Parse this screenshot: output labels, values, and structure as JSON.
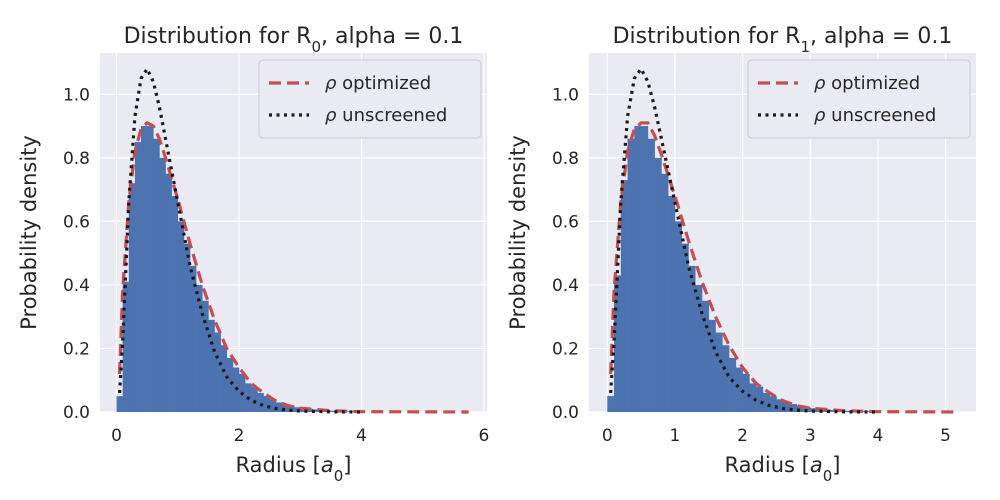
{
  "chart_data": [
    {
      "type": "histogram",
      "title_main": "Distribution for R",
      "title_sub": "0",
      "title_rest": ", alpha = 0.1",
      "xlabel_main": "Radius [",
      "xlabel_italic": "a",
      "xlabel_sub": "0",
      "xlabel_end": "]",
      "ylabel": "Probability density",
      "xlim": [
        -0.27,
        6.05
      ],
      "ylim": [
        0,
        1.13
      ],
      "xticks": [
        0,
        2,
        4,
        6
      ],
      "yticks": [
        0.0,
        0.2,
        0.4,
        0.6,
        0.8,
        1.0
      ],
      "grid": true,
      "legend_position": "top-right",
      "legend": [
        {
          "symbol": "ρ",
          "text": " optimized",
          "style": "dashed",
          "color": "#c44e52"
        },
        {
          "symbol": "ρ",
          "text": " unscreened",
          "style": "dotted",
          "color": "#1a1a1a"
        }
      ],
      "hist": {
        "color": "#4c72b0",
        "bin_start": 0.0,
        "bin_width": 0.1,
        "counts": [
          0.05,
          0.41,
          0.72,
          0.85,
          0.9,
          0.9,
          0.86,
          0.8,
          0.75,
          0.68,
          0.6,
          0.53,
          0.46,
          0.4,
          0.35,
          0.29,
          0.25,
          0.21,
          0.17,
          0.14,
          0.12,
          0.09,
          0.08,
          0.06,
          0.05,
          0.04,
          0.03,
          0.025,
          0.02,
          0.015,
          0.012,
          0.01,
          0.008,
          0.006,
          0.005,
          0.004,
          0.003,
          0.002,
          0.002,
          0.001
        ]
      },
      "curves": {
        "x_end": 5.75,
        "optimized": [
          [
            0.05,
            0.12
          ],
          [
            0.1,
            0.38
          ],
          [
            0.2,
            0.66
          ],
          [
            0.3,
            0.82
          ],
          [
            0.4,
            0.89
          ],
          [
            0.5,
            0.91
          ],
          [
            0.6,
            0.9
          ],
          [
            0.7,
            0.86
          ],
          [
            0.8,
            0.8
          ],
          [
            1.0,
            0.67
          ],
          [
            1.2,
            0.53
          ],
          [
            1.4,
            0.4
          ],
          [
            1.6,
            0.29
          ],
          [
            1.8,
            0.2
          ],
          [
            2.0,
            0.14
          ],
          [
            2.2,
            0.09
          ],
          [
            2.4,
            0.06
          ],
          [
            2.6,
            0.035
          ],
          [
            2.8,
            0.02
          ],
          [
            3.0,
            0.012
          ],
          [
            3.5,
            0.004
          ],
          [
            4.0,
            0.001
          ],
          [
            5.75,
            0.0
          ]
        ],
        "unscreened": [
          [
            0.05,
            0.06
          ],
          [
            0.1,
            0.22
          ],
          [
            0.2,
            0.66
          ],
          [
            0.3,
            0.93
          ],
          [
            0.4,
            1.05
          ],
          [
            0.5,
            1.08
          ],
          [
            0.6,
            1.04
          ],
          [
            0.7,
            0.96
          ],
          [
            0.8,
            0.86
          ],
          [
            1.0,
            0.66
          ],
          [
            1.2,
            0.46
          ],
          [
            1.4,
            0.31
          ],
          [
            1.6,
            0.19
          ],
          [
            1.8,
            0.11
          ],
          [
            2.0,
            0.065
          ],
          [
            2.2,
            0.037
          ],
          [
            2.4,
            0.02
          ],
          [
            2.6,
            0.011
          ],
          [
            2.8,
            0.006
          ],
          [
            3.0,
            0.003
          ],
          [
            3.5,
            0.0005
          ],
          [
            4.0,
            0.0
          ]
        ]
      }
    },
    {
      "type": "histogram",
      "title_main": "Distribution for R",
      "title_sub": "1",
      "title_rest": ", alpha = 0.1",
      "xlabel_main": "Radius [",
      "xlabel_italic": "a",
      "xlabel_sub": "0",
      "xlabel_end": "]",
      "ylabel": "Probability density",
      "xlim": [
        -0.27,
        5.45
      ],
      "ylim": [
        0,
        1.13
      ],
      "xticks": [
        0,
        1,
        2,
        3,
        4,
        5
      ],
      "yticks": [
        0.0,
        0.2,
        0.4,
        0.6,
        0.8,
        1.0
      ],
      "grid": true,
      "legend_position": "top-right",
      "legend": [
        {
          "symbol": "ρ",
          "text": " optimized",
          "style": "dashed",
          "color": "#c44e52"
        },
        {
          "symbol": "ρ",
          "text": " unscreened",
          "style": "dotted",
          "color": "#1a1a1a"
        }
      ],
      "hist": {
        "color": "#4c72b0",
        "bin_start": 0.0,
        "bin_width": 0.1,
        "counts": [
          0.05,
          0.43,
          0.73,
          0.86,
          0.9,
          0.9,
          0.86,
          0.8,
          0.75,
          0.68,
          0.6,
          0.53,
          0.46,
          0.4,
          0.35,
          0.29,
          0.25,
          0.21,
          0.17,
          0.14,
          0.12,
          0.09,
          0.08,
          0.06,
          0.05,
          0.04,
          0.03,
          0.025,
          0.02,
          0.015,
          0.012,
          0.01,
          0.008,
          0.006,
          0.005,
          0.004,
          0.003,
          0.002,
          0.002,
          0.001
        ]
      },
      "curves": {
        "x_end": 5.2,
        "optimized": [
          [
            0.05,
            0.12
          ],
          [
            0.1,
            0.38
          ],
          [
            0.2,
            0.66
          ],
          [
            0.3,
            0.82
          ],
          [
            0.4,
            0.89
          ],
          [
            0.5,
            0.91
          ],
          [
            0.6,
            0.91
          ],
          [
            0.7,
            0.87
          ],
          [
            0.8,
            0.81
          ],
          [
            1.0,
            0.68
          ],
          [
            1.2,
            0.54
          ],
          [
            1.4,
            0.41
          ],
          [
            1.6,
            0.3
          ],
          [
            1.8,
            0.21
          ],
          [
            2.0,
            0.14
          ],
          [
            2.2,
            0.09
          ],
          [
            2.4,
            0.06
          ],
          [
            2.6,
            0.035
          ],
          [
            2.8,
            0.02
          ],
          [
            3.0,
            0.012
          ],
          [
            3.5,
            0.004
          ],
          [
            4.0,
            0.001
          ],
          [
            5.2,
            0.0
          ]
        ],
        "unscreened": [
          [
            0.05,
            0.06
          ],
          [
            0.1,
            0.22
          ],
          [
            0.2,
            0.66
          ],
          [
            0.3,
            0.93
          ],
          [
            0.4,
            1.05
          ],
          [
            0.5,
            1.08
          ],
          [
            0.6,
            1.04
          ],
          [
            0.7,
            0.96
          ],
          [
            0.8,
            0.86
          ],
          [
            1.0,
            0.66
          ],
          [
            1.2,
            0.46
          ],
          [
            1.4,
            0.31
          ],
          [
            1.6,
            0.19
          ],
          [
            1.8,
            0.11
          ],
          [
            2.0,
            0.065
          ],
          [
            2.2,
            0.037
          ],
          [
            2.4,
            0.02
          ],
          [
            2.6,
            0.011
          ],
          [
            2.8,
            0.006
          ],
          [
            3.0,
            0.003
          ],
          [
            3.5,
            0.0005
          ],
          [
            4.0,
            0.0
          ]
        ]
      }
    }
  ]
}
